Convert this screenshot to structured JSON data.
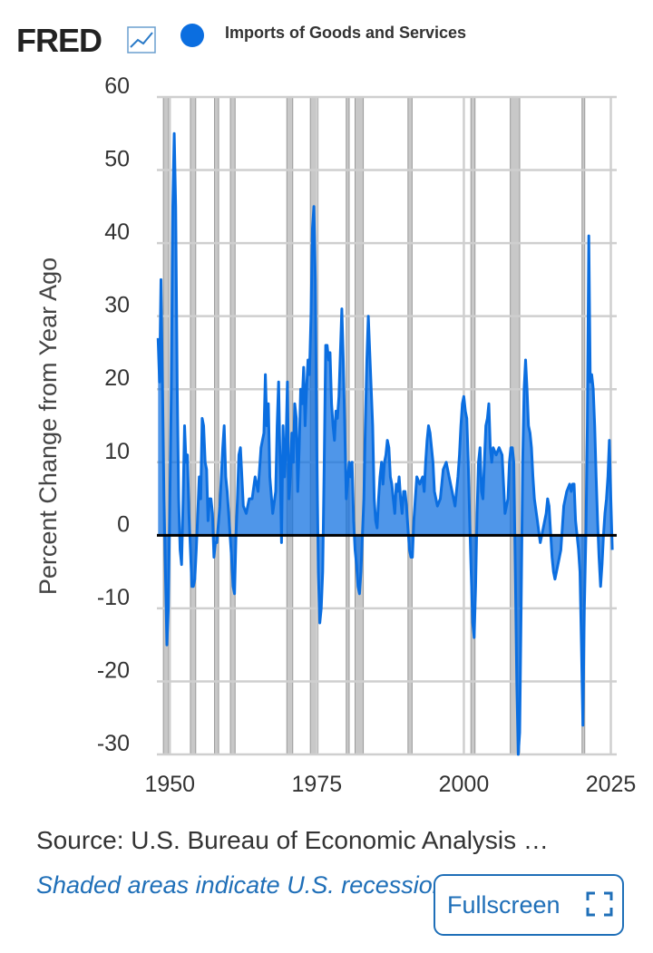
{
  "logo": "FRED",
  "chart_data": {
    "type": "area",
    "series": [
      {
        "name": "Imports of Goods and Services",
        "color": "#0b6ee0",
        "x": [
          1948,
          1948.25,
          1948.5,
          1948.75,
          1949,
          1949.25,
          1949.5,
          1949.75,
          1950,
          1950.25,
          1950.5,
          1950.75,
          1951,
          1951.25,
          1951.5,
          1951.75,
          1952,
          1952.25,
          1952.5,
          1952.75,
          1953,
          1953.25,
          1953.5,
          1953.75,
          1954,
          1954.25,
          1954.5,
          1955,
          1955.25,
          1955.5,
          1955.75,
          1956,
          1956.25,
          1956.5,
          1956.75,
          1957,
          1957.25,
          1957.5,
          1957.75,
          1958,
          1958.5,
          1959,
          1959.25,
          1959.5,
          1959.75,
          1960,
          1960.25,
          1960.5,
          1960.75,
          1961,
          1961.25,
          1961.5,
          1961.75,
          1962,
          1962.25,
          1962.5,
          1963,
          1963.5,
          1964,
          1964.5,
          1965,
          1965.5,
          1966,
          1966.25,
          1966.5,
          1966.75,
          1967,
          1967.5,
          1968,
          1968.25,
          1968.5,
          1968.75,
          1969,
          1969.25,
          1969.5,
          1969.75,
          1970,
          1970.25,
          1970.5,
          1970.75,
          1971,
          1971.25,
          1971.5,
          1971.75,
          1972,
          1972.25,
          1972.5,
          1972.75,
          1973,
          1973.25,
          1973.5,
          1973.75,
          1974,
          1974.25,
          1974.5,
          1974.75,
          1975,
          1975.25,
          1975.5,
          1975.75,
          1976,
          1976.25,
          1976.5,
          1976.75,
          1977,
          1977.25,
          1977.5,
          1977.75,
          1978,
          1978.25,
          1978.5,
          1978.75,
          1979,
          1979.25,
          1979.5,
          1979.75,
          1980,
          1980.5,
          1980.75,
          1981,
          1981.25,
          1981.5,
          1981.75,
          1982,
          1982.25,
          1982.5,
          1982.75,
          1983,
          1983.25,
          1983.5,
          1983.75,
          1984,
          1984.25,
          1984.5,
          1984.75,
          1985,
          1985.25,
          1985.5,
          1985.75,
          1986,
          1986.25,
          1986.5,
          1986.75,
          1987,
          1987.25,
          1987.5,
          1987.75,
          1988,
          1988.25,
          1988.5,
          1988.75,
          1989,
          1989.25,
          1989.5,
          1989.75,
          1990,
          1990.25,
          1990.5,
          1990.75,
          1991,
          1991.25,
          1991.5,
          1991.75,
          1992,
          1992.5,
          1993,
          1993.25,
          1993.5,
          1993.75,
          1994,
          1994.25,
          1994.5,
          1994.75,
          1995,
          1995.5,
          1996,
          1996.5,
          1997,
          1997.25,
          1997.5,
          1998,
          1998.5,
          1999,
          1999.25,
          1999.5,
          1999.75,
          2000,
          2000.25,
          2000.5,
          2000.75,
          2001,
          2001.25,
          2001.5,
          2001.75,
          2002,
          2002.25,
          2002.5,
          2002.75,
          2003,
          2003.25,
          2003.5,
          2003.75,
          2004,
          2004.25,
          2004.5,
          2004.75,
          2005,
          2005.5,
          2006,
          2006.5,
          2007,
          2007.5,
          2007.75,
          2008,
          2008.25,
          2008.5,
          2008.75,
          2009,
          2009.25,
          2009.5,
          2009.75,
          2010,
          2010.25,
          2010.5,
          2010.75,
          2011,
          2011.25,
          2011.5,
          2011.75,
          2012,
          2012.5,
          2013,
          2013.5,
          2014,
          2014.25,
          2014.5,
          2015,
          2015.25,
          2015.5,
          2016,
          2016.5,
          2017,
          2017.5,
          2018,
          2018.25,
          2018.5,
          2018.75,
          2019,
          2019.5,
          2019.75,
          2020,
          2020.25,
          2020.5,
          2020.75,
          2021,
          2021.25,
          2021.5,
          2021.75,
          2022,
          2022.25,
          2022.5,
          2022.75,
          2023,
          2023.25,
          2023.5,
          2023.75,
          2024,
          2024.25,
          2024.5,
          2024.75,
          2025,
          2025.25
        ],
        "values": [
          27,
          21,
          35,
          20,
          5,
          -5,
          -15,
          -10,
          5,
          20,
          45,
          55,
          45,
          20,
          5,
          -2,
          -4,
          5,
          15,
          10,
          11,
          3,
          -2,
          -7,
          -7,
          -6,
          -2,
          8,
          5,
          16,
          15,
          10,
          9,
          2,
          5,
          5,
          3,
          -3,
          -1,
          -1,
          4,
          12,
          15,
          8,
          6,
          3,
          0,
          -3,
          -7,
          -8,
          0,
          5,
          11,
          12,
          8,
          4,
          3,
          5,
          5,
          8,
          6,
          12,
          14,
          22,
          15,
          18,
          8,
          3,
          6,
          15,
          21,
          10,
          -1,
          15,
          8,
          12,
          21,
          5,
          8,
          14,
          10,
          18,
          16,
          6,
          12,
          20,
          18,
          23,
          15,
          20,
          24,
          22,
          30,
          42,
          45,
          35,
          12,
          -5,
          -12,
          -10,
          -5,
          10,
          26,
          26,
          24,
          25,
          18,
          15,
          13,
          17,
          16,
          19,
          25,
          31,
          24,
          15,
          5,
          10,
          8,
          10,
          2,
          -2,
          -4,
          -7,
          -8,
          -5,
          0,
          5,
          15,
          24,
          30,
          25,
          20,
          15,
          5,
          2,
          1,
          5,
          8,
          10,
          7,
          10,
          11,
          13,
          12,
          8,
          7,
          5,
          3,
          7,
          6,
          8,
          5,
          3,
          6,
          6,
          4,
          1,
          -2,
          -3,
          -3,
          2,
          5,
          8,
          7,
          8,
          6,
          10,
          13,
          15,
          14,
          12,
          10,
          6,
          4,
          5,
          9,
          10,
          9,
          8,
          6,
          4,
          8,
          11,
          15,
          18,
          19,
          17,
          16,
          10,
          2,
          -5,
          -12,
          -14,
          -7,
          3,
          10,
          12,
          6,
          5,
          10,
          15,
          16,
          18,
          12,
          10,
          12,
          11,
          12,
          11,
          3,
          5,
          10,
          12,
          12,
          10,
          -5,
          -20,
          -30,
          -27,
          -10,
          10,
          20,
          24,
          20,
          15,
          14,
          12,
          8,
          5,
          2,
          -1,
          1,
          3,
          5,
          4,
          -3,
          -5,
          -6,
          -4,
          -2,
          4,
          6,
          7,
          6,
          7,
          7,
          2,
          -2,
          -5,
          -15,
          -26,
          -10,
          0,
          15,
          41,
          21,
          22,
          20,
          15,
          8,
          2,
          -3,
          -7,
          -4,
          0,
          3,
          5,
          8,
          13,
          5,
          -2
        ]
      }
    ],
    "recessions": [
      [
        1948.9,
        1949.8
      ],
      [
        1953.5,
        1954.4
      ],
      [
        1957.6,
        1958.3
      ],
      [
        1960.3,
        1961.1
      ],
      [
        1969.9,
        1970.9
      ],
      [
        1973.9,
        1975.2
      ],
      [
        1980.0,
        1980.5
      ],
      [
        1981.5,
        1982.9
      ],
      [
        1990.5,
        1991.2
      ],
      [
        2001.2,
        2001.9
      ],
      [
        2007.9,
        2009.5
      ],
      [
        2020.1,
        2020.3
      ]
    ],
    "ylabel": "Percent Change from Year Ago",
    "xlim": [
      1947.8,
      2026
    ],
    "xticks": [
      1950,
      1975,
      2000,
      2025
    ],
    "ylim": [
      -30,
      60
    ],
    "yticks": [
      -30,
      -20,
      -10,
      0,
      10,
      20,
      30,
      40,
      50,
      60
    ],
    "grid": true,
    "source": "Source: U.S. Bureau of Economic Analysis …",
    "note": "Shaded areas indicate U.S. recessions"
  },
  "button": "Fullscreen"
}
